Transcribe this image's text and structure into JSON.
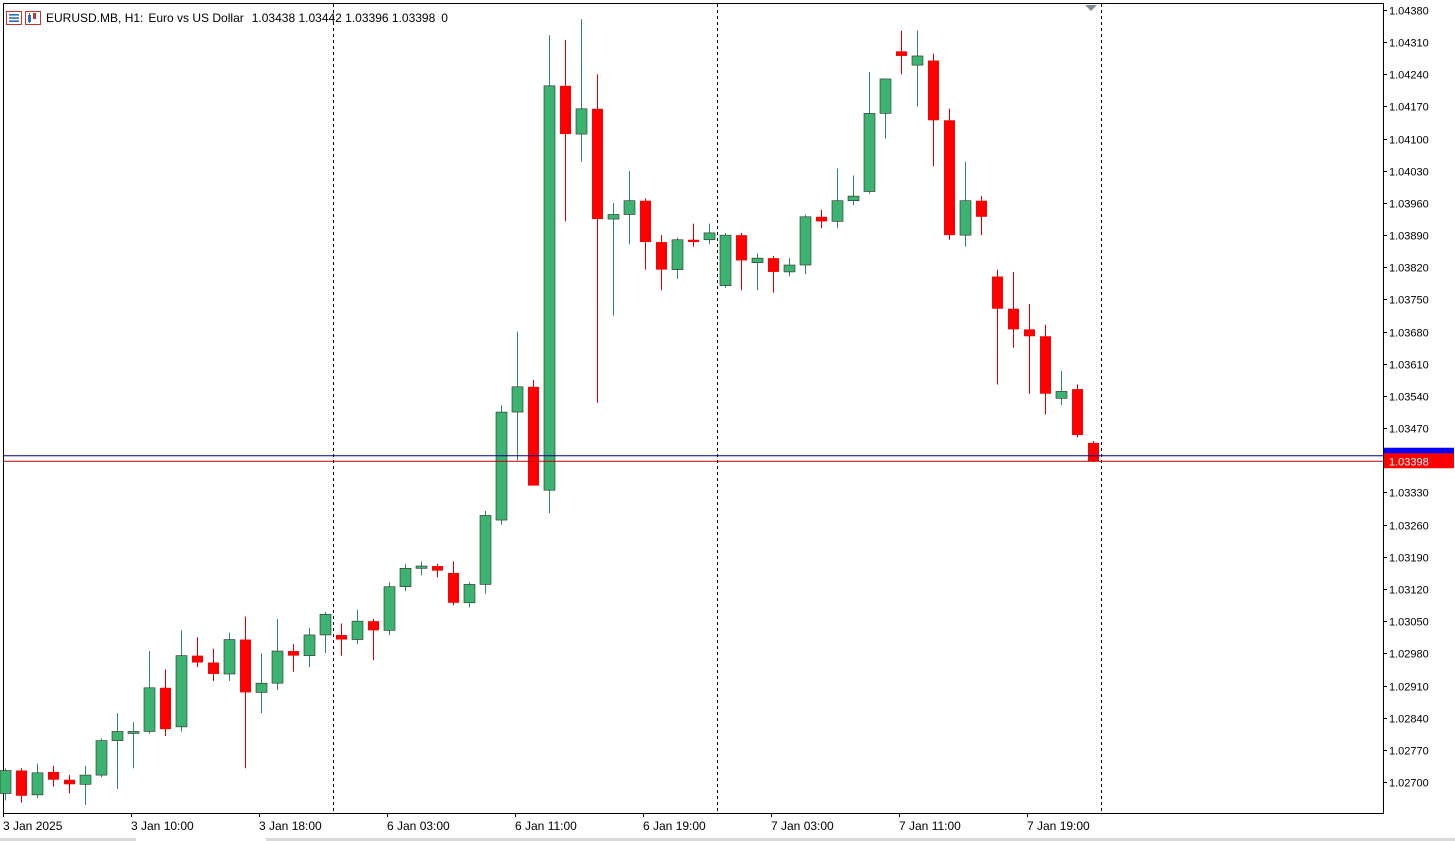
{
  "header": {
    "symbol": "EURUSD.MB",
    "timeframe": "H1:",
    "description": "Euro vs US Dollar",
    "ohlc": "1.03438 1.03442 1.03396 1.03398",
    "volume": "0",
    "icon_list": "chart-list-icon",
    "icon_symbol": "symbol-chart-icon"
  },
  "colors": {
    "bull": "#3cb371",
    "bear": "#ff0000",
    "bid_line": "#c00000",
    "ask_line": "#00008b",
    "bid_label_bg": "#ff0000",
    "ask_label_bg": "#0000ff"
  },
  "chart_data": {
    "type": "candlestick",
    "ylim": [
      1.0265,
      1.0438
    ],
    "y_ticks": [
      "1.04380",
      "1.04310",
      "1.04240",
      "1.04170",
      "1.04100",
      "1.04030",
      "1.03960",
      "1.03890",
      "1.03820",
      "1.03750",
      "1.03680",
      "1.03610",
      "1.03540",
      "1.03470",
      "1.03400",
      "1.03330",
      "1.03260",
      "1.03190",
      "1.03120",
      "1.03050",
      "1.02980",
      "1.02910",
      "1.02840",
      "1.02770",
      "1.02700"
    ],
    "x_labels": [
      "3 Jan 2025",
      "3 Jan 10:00",
      "3 Jan 18:00",
      "6 Jan 03:00",
      "6 Jan 11:00",
      "6 Jan 19:00",
      "7 Jan 03:00",
      "7 Jan 11:00",
      "7 Jan 19:00"
    ],
    "day_separators_after_index": [
      20,
      44,
      68
    ],
    "bid_price": "1.03398",
    "ask_price": "1.03410",
    "candles": [
      {
        "o": 1.02675,
        "h": 1.0273,
        "l": 1.0266,
        "c": 1.02725
      },
      {
        "o": 1.02725,
        "h": 1.0273,
        "l": 1.02655,
        "c": 1.0267
      },
      {
        "o": 1.02672,
        "h": 1.0274,
        "l": 1.02665,
        "c": 1.0272
      },
      {
        "o": 1.02722,
        "h": 1.02735,
        "l": 1.0269,
        "c": 1.02705
      },
      {
        "o": 1.02705,
        "h": 1.02715,
        "l": 1.02675,
        "c": 1.02695
      },
      {
        "o": 1.02695,
        "h": 1.02735,
        "l": 1.0265,
        "c": 1.02715
      },
      {
        "o": 1.02715,
        "h": 1.02795,
        "l": 1.0271,
        "c": 1.0279
      },
      {
        "o": 1.0279,
        "h": 1.0285,
        "l": 1.02685,
        "c": 1.0281
      },
      {
        "o": 1.0281,
        "h": 1.0283,
        "l": 1.0273,
        "c": 1.0281
      },
      {
        "o": 1.0281,
        "h": 1.02985,
        "l": 1.02805,
        "c": 1.02905
      },
      {
        "o": 1.02905,
        "h": 1.02945,
        "l": 1.028,
        "c": 1.02815
      },
      {
        "o": 1.0282,
        "h": 1.0303,
        "l": 1.0281,
        "c": 1.02975
      },
      {
        "o": 1.02975,
        "h": 1.03015,
        "l": 1.0295,
        "c": 1.0296
      },
      {
        "o": 1.0296,
        "h": 1.0299,
        "l": 1.0292,
        "c": 1.02935
      },
      {
        "o": 1.02935,
        "h": 1.03025,
        "l": 1.0292,
        "c": 1.0301
      },
      {
        "o": 1.0301,
        "h": 1.0306,
        "l": 1.0273,
        "c": 1.02895
      },
      {
        "o": 1.02895,
        "h": 1.0298,
        "l": 1.0285,
        "c": 1.02915
      },
      {
        "o": 1.02915,
        "h": 1.03055,
        "l": 1.029,
        "c": 1.02985
      },
      {
        "o": 1.02985,
        "h": 1.03,
        "l": 1.0294,
        "c": 1.02975
      },
      {
        "o": 1.02975,
        "h": 1.03035,
        "l": 1.0295,
        "c": 1.0302
      },
      {
        "o": 1.0302,
        "h": 1.0307,
        "l": 1.0298,
        "c": 1.03065
      },
      {
        "o": 1.0302,
        "h": 1.03045,
        "l": 1.02975,
        "c": 1.0301
      },
      {
        "o": 1.0301,
        "h": 1.03075,
        "l": 1.03,
        "c": 1.0305
      },
      {
        "o": 1.0305,
        "h": 1.03055,
        "l": 1.02965,
        "c": 1.0303
      },
      {
        "o": 1.0303,
        "h": 1.03135,
        "l": 1.0302,
        "c": 1.03125
      },
      {
        "o": 1.03125,
        "h": 1.03175,
        "l": 1.03115,
        "c": 1.03165
      },
      {
        "o": 1.03165,
        "h": 1.0318,
        "l": 1.0315,
        "c": 1.0317
      },
      {
        "o": 1.0317,
        "h": 1.03175,
        "l": 1.03145,
        "c": 1.0316
      },
      {
        "o": 1.03155,
        "h": 1.0318,
        "l": 1.03085,
        "c": 1.0309
      },
      {
        "o": 1.0309,
        "h": 1.03135,
        "l": 1.0308,
        "c": 1.0313
      },
      {
        "o": 1.0313,
        "h": 1.0329,
        "l": 1.0311,
        "c": 1.0328
      },
      {
        "o": 1.0327,
        "h": 1.0352,
        "l": 1.0326,
        "c": 1.03505
      },
      {
        "o": 1.03505,
        "h": 1.0368,
        "l": 1.034,
        "c": 1.0356
      },
      {
        "o": 1.0356,
        "h": 1.03575,
        "l": 1.03345,
        "c": 1.03345
      },
      {
        "o": 1.03335,
        "h": 1.04325,
        "l": 1.03285,
        "c": 1.04215
      },
      {
        "o": 1.04215,
        "h": 1.04315,
        "l": 1.0392,
        "c": 1.0411
      },
      {
        "o": 1.0411,
        "h": 1.0436,
        "l": 1.0405,
        "c": 1.04165
      },
      {
        "o": 1.04165,
        "h": 1.0424,
        "l": 1.03525,
        "c": 1.03925
      },
      {
        "o": 1.03925,
        "h": 1.0396,
        "l": 1.03715,
        "c": 1.03935
      },
      {
        "o": 1.03935,
        "h": 1.0403,
        "l": 1.0387,
        "c": 1.03965
      },
      {
        "o": 1.03965,
        "h": 1.0397,
        "l": 1.03815,
        "c": 1.03875
      },
      {
        "o": 1.03875,
        "h": 1.0389,
        "l": 1.0377,
        "c": 1.03815
      },
      {
        "o": 1.03815,
        "h": 1.03885,
        "l": 1.03795,
        "c": 1.0388
      },
      {
        "o": 1.0388,
        "h": 1.03915,
        "l": 1.03865,
        "c": 1.03875
      },
      {
        "o": 1.0388,
        "h": 1.03915,
        "l": 1.0387,
        "c": 1.03895
      },
      {
        "o": 1.0378,
        "h": 1.03895,
        "l": 1.03775,
        "c": 1.0389
      },
      {
        "o": 1.0389,
        "h": 1.03895,
        "l": 1.0377,
        "c": 1.03835
      },
      {
        "o": 1.0383,
        "h": 1.0385,
        "l": 1.0377,
        "c": 1.0384
      },
      {
        "o": 1.0384,
        "h": 1.03845,
        "l": 1.03765,
        "c": 1.0381
      },
      {
        "o": 1.0381,
        "h": 1.0384,
        "l": 1.038,
        "c": 1.03825
      },
      {
        "o": 1.03825,
        "h": 1.03935,
        "l": 1.03805,
        "c": 1.0393
      },
      {
        "o": 1.0393,
        "h": 1.03945,
        "l": 1.03905,
        "c": 1.0392
      },
      {
        "o": 1.0392,
        "h": 1.04035,
        "l": 1.03905,
        "c": 1.03965
      },
      {
        "o": 1.03965,
        "h": 1.0402,
        "l": 1.03955,
        "c": 1.03975
      },
      {
        "o": 1.03985,
        "h": 1.04245,
        "l": 1.0398,
        "c": 1.04155
      },
      {
        "o": 1.04155,
        "h": 1.0423,
        "l": 1.041,
        "c": 1.0423
      },
      {
        "o": 1.0429,
        "h": 1.04335,
        "l": 1.0424,
        "c": 1.0428
      },
      {
        "o": 1.0426,
        "h": 1.04335,
        "l": 1.0417,
        "c": 1.0428
      },
      {
        "o": 1.0427,
        "h": 1.04285,
        "l": 1.0404,
        "c": 1.0414
      },
      {
        "o": 1.0414,
        "h": 1.04165,
        "l": 1.0388,
        "c": 1.0389
      },
      {
        "o": 1.0389,
        "h": 1.0405,
        "l": 1.03865,
        "c": 1.03965
      },
      {
        "o": 1.03965,
        "h": 1.03975,
        "l": 1.0389,
        "c": 1.0393
      },
      {
        "o": 1.038,
        "h": 1.03815,
        "l": 1.03565,
        "c": 1.0373
      },
      {
        "o": 1.0373,
        "h": 1.0381,
        "l": 1.03645,
        "c": 1.03685
      },
      {
        "o": 1.03685,
        "h": 1.0374,
        "l": 1.03545,
        "c": 1.0367
      },
      {
        "o": 1.0367,
        "h": 1.03695,
        "l": 1.035,
        "c": 1.03545
      },
      {
        "o": 1.03535,
        "h": 1.03595,
        "l": 1.0352,
        "c": 1.0355
      },
      {
        "o": 1.03555,
        "h": 1.03565,
        "l": 1.0345,
        "c": 1.03455
      },
      {
        "o": 1.03438,
        "h": 1.03442,
        "l": 1.03396,
        "c": 1.03398
      }
    ]
  }
}
